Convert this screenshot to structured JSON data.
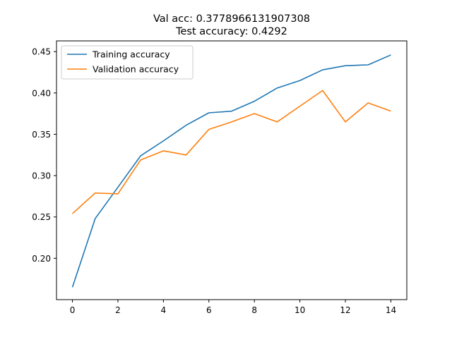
{
  "chart_data": {
    "type": "line",
    "title_line1": "Val acc: 0.3778966131907308",
    "title_line2": "Test accuracy: 0.4292",
    "xlabel": "",
    "ylabel": "",
    "xlim": [
      -0.7,
      14.7
    ],
    "ylim": [
      0.15,
      0.463
    ],
    "xticks": [
      0,
      2,
      4,
      6,
      8,
      10,
      12,
      14
    ],
    "yticks": [
      0.2,
      0.25,
      0.3,
      0.35,
      0.4,
      0.45
    ],
    "grid": false,
    "legend_position": "top-left",
    "x": [
      0,
      1,
      2,
      3,
      4,
      5,
      6,
      7,
      8,
      9,
      10,
      11,
      12,
      13,
      14
    ],
    "series": [
      {
        "name": "Training accuracy",
        "color": "#1f77b4",
        "values": [
          0.165,
          0.248,
          0.286,
          0.324,
          0.342,
          0.361,
          0.376,
          0.378,
          0.39,
          0.406,
          0.415,
          0.428,
          0.433,
          0.434,
          0.446
        ]
      },
      {
        "name": "Validation accuracy",
        "color": "#ff7f0e",
        "values": [
          0.254,
          0.279,
          0.278,
          0.319,
          0.33,
          0.325,
          0.356,
          0.365,
          0.375,
          0.365,
          0.384,
          0.403,
          0.365,
          0.388,
          0.378
        ]
      }
    ]
  }
}
